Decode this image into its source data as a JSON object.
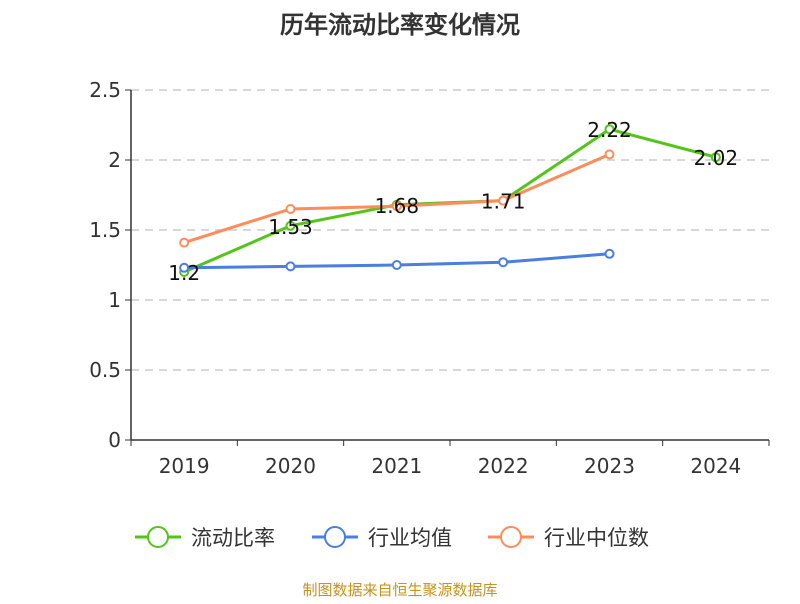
{
  "chart_data": {
    "type": "line",
    "title": "历年流动比率变化情况",
    "categories": [
      "2019",
      "2020",
      "2021",
      "2022",
      "2023",
      "2024"
    ],
    "ylim": [
      0,
      2.5
    ],
    "yticks": [
      "0",
      "0.5",
      "1",
      "1.5",
      "2",
      "2.5"
    ],
    "grid": true,
    "legend_position": "bottom",
    "series": [
      {
        "name": "流动比率",
        "color": "#52c41a",
        "values": [
          1.2,
          1.53,
          1.68,
          1.71,
          2.22,
          2.02
        ],
        "labels": [
          "1.2",
          "1.53",
          "1.68",
          "1.71",
          "2.22",
          "2.02"
        ]
      },
      {
        "name": "行业均值",
        "color": "#4a7ee0",
        "values": [
          1.23,
          1.24,
          1.25,
          1.27,
          1.33,
          null
        ]
      },
      {
        "name": "行业中位数",
        "color": "#ff8c5a",
        "values": [
          1.41,
          1.65,
          1.67,
          1.71,
          2.04,
          null
        ]
      }
    ]
  },
  "footer": {
    "source": "制图数据来自恒生聚源数据库",
    "color": "#c8921e"
  }
}
